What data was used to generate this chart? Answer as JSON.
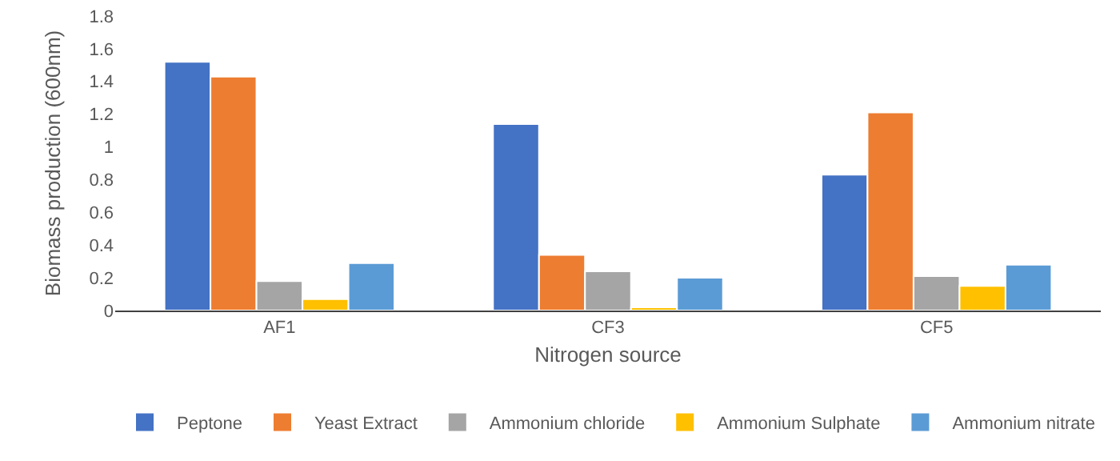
{
  "chart_data": {
    "type": "bar",
    "xlabel": "Nitrogen source",
    "ylabel": "Biomass production (600nm)",
    "categories": [
      "AF1",
      "CF3",
      "CF5"
    ],
    "series": [
      {
        "name": "Peptone",
        "color": "#4472c4",
        "values": [
          1.52,
          1.14,
          0.83
        ]
      },
      {
        "name": "Yeast Extract",
        "color": "#ed7d31",
        "values": [
          1.43,
          0.34,
          1.21
        ]
      },
      {
        "name": "Ammonium chloride",
        "color": "#a5a5a5",
        "values": [
          0.18,
          0.24,
          0.21
        ]
      },
      {
        "name": "Ammonium Sulphate",
        "color": "#ffc000",
        "values": [
          0.07,
          0.02,
          0.15
        ]
      },
      {
        "name": "Ammonium nitrate",
        "color": "#5b9bd5",
        "values": [
          0.29,
          0.2,
          0.28
        ]
      }
    ],
    "ylim": [
      0,
      1.8
    ],
    "yticks": [
      0,
      0.2,
      0.4,
      0.6,
      0.8,
      1,
      1.2,
      1.4,
      1.6,
      1.8
    ],
    "grid": false,
    "legend": "bottom"
  }
}
